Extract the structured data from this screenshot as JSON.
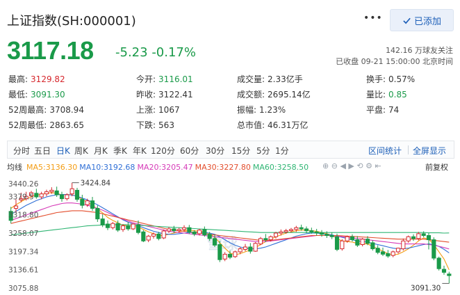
{
  "header": {
    "title": "上证指数(SH:000001)",
    "more_label": "•••",
    "add_label": "已添加"
  },
  "quote": {
    "price": "3117.18",
    "change": "-5.23",
    "change_pct": "-0.17%",
    "followers_count": "142.16",
    "followers_label": "万球友关注",
    "status": "已收盘",
    "datetime": "09-21 15:00:00",
    "timezone": "北京时间"
  },
  "stats": [
    [
      {
        "label": "最高:",
        "value": "3129.82",
        "color": "red"
      },
      {
        "label": "今开:",
        "value": "3116.01",
        "color": "green"
      },
      {
        "label": "成交量:",
        "value": "2.33亿手",
        "color": "black"
      },
      {
        "label": "换手:",
        "value": "0.57%",
        "color": "black"
      }
    ],
    [
      {
        "label": "最低:",
        "value": "3091.30",
        "color": "green"
      },
      {
        "label": "昨收:",
        "value": "3122.41",
        "color": "black"
      },
      {
        "label": "成交额:",
        "value": "2695.14亿",
        "color": "black"
      },
      {
        "label": "量比:",
        "value": "0.85",
        "color": "green"
      }
    ],
    [
      {
        "label": "52周最高:",
        "value": "3708.94",
        "color": "black"
      },
      {
        "label": "上涨:",
        "value": "1067",
        "color": "black"
      },
      {
        "label": "振幅:",
        "value": "1.23%",
        "color": "black"
      },
      {
        "label": "平盘:",
        "value": "74",
        "color": "black"
      }
    ],
    [
      {
        "label": "52周最低:",
        "value": "2863.65",
        "color": "black"
      },
      {
        "label": "下跌:",
        "value": "563",
        "color": "black"
      },
      {
        "label": "总市值:",
        "value": "46.31万亿",
        "color": "black"
      }
    ]
  ],
  "tabs": [
    "分时",
    "五日",
    "日K",
    "周K",
    "月K",
    "季K",
    "年K",
    "120分",
    "60分",
    "30分",
    "15分",
    "5分",
    "1分"
  ],
  "active_tab": "日K",
  "tabs_right": [
    "区间统计",
    "全屏显示"
  ],
  "legend": {
    "label": "均线",
    "items": [
      {
        "text": "MA5:3136.30",
        "color": "#f39c12"
      },
      {
        "text": "MA10:3192.68",
        "color": "#2f6fd6"
      },
      {
        "text": "MA20:3205.47",
        "color": "#d63bb8"
      },
      {
        "text": "MA30:3227.80",
        "color": "#e34d2c"
      },
      {
        "text": "MA60:3258.50",
        "color": "#2fb573"
      }
    ],
    "adjust_label": "前复权"
  },
  "colors": {
    "up": "#d6262c",
    "down": "#1a9a49"
  },
  "chart_data": {
    "type": "candlestick",
    "y_ticks": [
      "3440.26",
      "3379.5",
      "3318.80",
      "3258.07",
      "3197.34",
      "3136.61",
      "3075.88"
    ],
    "ylim": [
      3075.88,
      3440.26
    ],
    "annotations": {
      "high": "3424.84",
      "low": "3091.30"
    },
    "candles": [
      [
        3330,
        3345,
        3300,
        3290
      ],
      [
        3340,
        3370,
        3348,
        3325
      ],
      [
        3368,
        3392,
        3372,
        3360
      ],
      [
        3372,
        3395,
        3380,
        3366
      ],
      [
        3382,
        3398,
        3392,
        3375
      ],
      [
        3390,
        3405,
        3378,
        3372
      ],
      [
        3378,
        3395,
        3388,
        3370
      ],
      [
        3388,
        3402,
        3395,
        3380
      ],
      [
        3395,
        3410,
        3400,
        3388
      ],
      [
        3398,
        3412,
        3385,
        3378
      ],
      [
        3385,
        3395,
        3372,
        3362
      ],
      [
        3372,
        3390,
        3385,
        3366
      ],
      [
        3388,
        3424.84,
        3405,
        3380
      ],
      [
        3400,
        3408,
        3370,
        3362
      ],
      [
        3370,
        3385,
        3350,
        3340
      ],
      [
        3352,
        3372,
        3365,
        3345
      ],
      [
        3365,
        3378,
        3340,
        3332
      ],
      [
        3340,
        3350,
        3305,
        3295
      ],
      [
        3305,
        3320,
        3285,
        3278
      ],
      [
        3288,
        3300,
        3276,
        3268
      ],
      [
        3276,
        3295,
        3290,
        3270
      ],
      [
        3290,
        3300,
        3268,
        3262
      ],
      [
        3270,
        3288,
        3282,
        3262
      ],
      [
        3282,
        3295,
        3272,
        3266
      ],
      [
        3272,
        3290,
        3288,
        3268
      ],
      [
        3286,
        3300,
        3260,
        3254
      ],
      [
        3262,
        3268,
        3232,
        3228
      ],
      [
        3235,
        3252,
        3248,
        3228
      ],
      [
        3248,
        3260,
        3255,
        3240
      ],
      [
        3255,
        3262,
        3240,
        3234
      ],
      [
        3242,
        3270,
        3265,
        3238
      ],
      [
        3265,
        3278,
        3272,
        3258
      ],
      [
        3272,
        3282,
        3266,
        3258
      ],
      [
        3266,
        3275,
        3270,
        3260
      ],
      [
        3270,
        3284,
        3276,
        3262
      ],
      [
        3276,
        3285,
        3262,
        3255
      ],
      [
        3262,
        3268,
        3255,
        3248
      ],
      [
        3256,
        3272,
        3268,
        3250
      ],
      [
        3270,
        3280,
        3252,
        3246
      ],
      [
        3254,
        3262,
        3240,
        3232
      ],
      [
        3240,
        3252,
        3218,
        3212
      ],
      [
        3220,
        3232,
        3170,
        3162
      ],
      [
        3172,
        3195,
        3188,
        3165
      ],
      [
        3188,
        3200,
        3178,
        3172
      ],
      [
        3180,
        3200,
        3196,
        3176
      ],
      [
        3196,
        3212,
        3206,
        3188
      ],
      [
        3204,
        3222,
        3212,
        3198
      ],
      [
        3212,
        3225,
        3198,
        3190
      ],
      [
        3198,
        3228,
        3224,
        3196
      ],
      [
        3222,
        3245,
        3240,
        3218
      ],
      [
        3240,
        3255,
        3236,
        3228
      ],
      [
        3236,
        3250,
        3246,
        3230
      ],
      [
        3246,
        3262,
        3258,
        3240
      ],
      [
        3258,
        3270,
        3262,
        3250
      ],
      [
        3262,
        3272,
        3266,
        3256
      ],
      [
        3266,
        3275,
        3270,
        3260
      ],
      [
        3270,
        3282,
        3276,
        3262
      ],
      [
        3276,
        3286,
        3272,
        3266
      ],
      [
        3272,
        3280,
        3266,
        3258
      ],
      [
        3266,
        3276,
        3262,
        3256
      ],
      [
        3262,
        3272,
        3258,
        3250
      ],
      [
        3258,
        3268,
        3254,
        3246
      ],
      [
        3254,
        3264,
        3250,
        3242
      ],
      [
        3250,
        3260,
        3246,
        3238
      ],
      [
        3246,
        3256,
        3204,
        3198
      ],
      [
        3206,
        3238,
        3232,
        3200
      ],
      [
        3232,
        3250,
        3246,
        3226
      ],
      [
        3246,
        3254,
        3236,
        3230
      ],
      [
        3236,
        3248,
        3218,
        3212
      ],
      [
        3220,
        3242,
        3238,
        3214
      ],
      [
        3238,
        3248,
        3224,
        3218
      ],
      [
        3226,
        3234,
        3206,
        3200
      ],
      [
        3208,
        3218,
        3194,
        3188
      ],
      [
        3196,
        3210,
        3188,
        3182
      ],
      [
        3190,
        3202,
        3182,
        3176
      ],
      [
        3184,
        3200,
        3196,
        3178
      ],
      [
        3196,
        3210,
        3208,
        3190
      ],
      [
        3206,
        3240,
        3232,
        3200
      ],
      [
        3232,
        3250,
        3246,
        3226
      ],
      [
        3246,
        3254,
        3240,
        3232
      ],
      [
        3240,
        3262,
        3256,
        3234
      ],
      [
        3256,
        3264,
        3250,
        3244
      ],
      [
        3250,
        3258,
        3236,
        3204
      ],
      [
        3236,
        3244,
        3175,
        3168
      ],
      [
        3175,
        3180,
        3140,
        3134
      ],
      [
        3138,
        3150,
        3128,
        3120
      ],
      [
        3122.41,
        3129.82,
        3117.18,
        3091.3
      ]
    ],
    "ma": {
      "MA5": [
        3340,
        3352,
        3362,
        3372,
        3378,
        3385,
        3386,
        3390,
        3392,
        3390,
        3385,
        3386,
        3385,
        3380,
        3370,
        3360,
        3350,
        3338,
        3325,
        3310,
        3300,
        3292,
        3284,
        3282,
        3280,
        3278,
        3270,
        3262,
        3256,
        3250,
        3250,
        3254,
        3258,
        3262,
        3266,
        3268,
        3266,
        3264,
        3262,
        3256,
        3244,
        3226,
        3208,
        3192,
        3186,
        3190,
        3196,
        3202,
        3210,
        3220,
        3230,
        3238,
        3246,
        3252,
        3258,
        3262,
        3266,
        3268,
        3268,
        3266,
        3264,
        3260,
        3256,
        3252,
        3240,
        3232,
        3230,
        3228,
        3224,
        3222,
        3222,
        3214,
        3206,
        3198,
        3190,
        3186,
        3188,
        3196,
        3206,
        3218,
        3232,
        3242,
        3238,
        3220,
        3196,
        3172,
        3136.3
      ],
      "MA10": [
        3320,
        3330,
        3340,
        3350,
        3358,
        3366,
        3372,
        3378,
        3382,
        3385,
        3386,
        3386,
        3384,
        3380,
        3374,
        3368,
        3360,
        3352,
        3342,
        3332,
        3322,
        3312,
        3302,
        3294,
        3288,
        3282,
        3276,
        3270,
        3264,
        3260,
        3256,
        3254,
        3254,
        3256,
        3258,
        3260,
        3260,
        3260,
        3260,
        3258,
        3254,
        3246,
        3236,
        3226,
        3218,
        3212,
        3208,
        3206,
        3206,
        3208,
        3212,
        3218,
        3224,
        3230,
        3236,
        3242,
        3248,
        3252,
        3256,
        3258,
        3258,
        3256,
        3254,
        3252,
        3248,
        3244,
        3240,
        3236,
        3232,
        3230,
        3228,
        3224,
        3220,
        3216,
        3212,
        3208,
        3206,
        3206,
        3208,
        3212,
        3216,
        3220,
        3222,
        3220,
        3214,
        3204,
        3192.68
      ],
      "MA20": [
        3300,
        3306,
        3312,
        3318,
        3324,
        3330,
        3336,
        3342,
        3348,
        3352,
        3356,
        3358,
        3358,
        3356,
        3354,
        3350,
        3346,
        3340,
        3334,
        3326,
        3318,
        3310,
        3304,
        3298,
        3292,
        3288,
        3284,
        3280,
        3276,
        3272,
        3268,
        3264,
        3262,
        3260,
        3258,
        3256,
        3254,
        3252,
        3250,
        3248,
        3246,
        3244,
        3242,
        3240,
        3238,
        3236,
        3234,
        3232,
        3230,
        3230,
        3230,
        3232,
        3234,
        3236,
        3238,
        3240,
        3242,
        3244,
        3246,
        3248,
        3250,
        3250,
        3250,
        3250,
        3248,
        3246,
        3244,
        3242,
        3240,
        3238,
        3236,
        3234,
        3232,
        3230,
        3228,
        3226,
        3224,
        3222,
        3222,
        3222,
        3222,
        3222,
        3220,
        3218,
        3214,
        3210,
        3205.47
      ],
      "MA30": [
        3290,
        3294,
        3298,
        3302,
        3306,
        3310,
        3314,
        3318,
        3322,
        3326,
        3328,
        3330,
        3332,
        3332,
        3332,
        3330,
        3328,
        3326,
        3322,
        3318,
        3314,
        3310,
        3306,
        3302,
        3298,
        3294,
        3290,
        3286,
        3282,
        3278,
        3274,
        3270,
        3268,
        3266,
        3264,
        3262,
        3260,
        3258,
        3256,
        3254,
        3252,
        3250,
        3248,
        3246,
        3244,
        3242,
        3240,
        3238,
        3236,
        3234,
        3234,
        3234,
        3236,
        3238,
        3240,
        3242,
        3244,
        3246,
        3248,
        3250,
        3250,
        3250,
        3250,
        3250,
        3250,
        3249,
        3248,
        3247,
        3246,
        3245,
        3244,
        3243,
        3242,
        3241,
        3240,
        3239,
        3238,
        3238,
        3238,
        3238,
        3238,
        3238,
        3236,
        3234,
        3232,
        3230,
        3227.8
      ],
      "MA60": [
        3252,
        3254,
        3256,
        3258,
        3260,
        3262,
        3264,
        3266,
        3268,
        3270,
        3272,
        3274,
        3276,
        3278,
        3280,
        3282,
        3283,
        3284,
        3285,
        3286,
        3286,
        3286,
        3286,
        3286,
        3285,
        3284,
        3283,
        3282,
        3281,
        3280,
        3279,
        3278,
        3277,
        3276,
        3275,
        3274,
        3273,
        3272,
        3271,
        3270,
        3269,
        3268,
        3267,
        3266,
        3265,
        3264,
        3263,
        3262,
        3261,
        3260,
        3260,
        3260,
        3260,
        3260,
        3260,
        3260,
        3260,
        3260,
        3260,
        3260,
        3260,
        3260,
        3260,
        3260,
        3260,
        3260,
        3260,
        3260,
        3260,
        3260,
        3260,
        3260,
        3260,
        3260,
        3260,
        3260,
        3260,
        3260,
        3260,
        3260,
        3260,
        3260,
        3259,
        3259,
        3259,
        3258,
        3258.5
      ]
    }
  }
}
